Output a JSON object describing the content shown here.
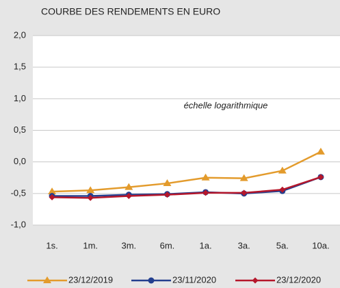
{
  "chart_data": {
    "type": "line",
    "title": "COURBE DES RENDEMENTS EN EURO",
    "annotation": "échelle logarithmique",
    "categories": [
      "1s.",
      "1m.",
      "3m.",
      "6m.",
      "1a.",
      "3a.",
      "5a.",
      "10a."
    ],
    "series": [
      {
        "name": "23/12/2019",
        "color": "#e39b2c",
        "marker": "triangle",
        "values": [
          -0.47,
          -0.45,
          -0.4,
          -0.34,
          -0.25,
          -0.26,
          -0.14,
          0.16
        ]
      },
      {
        "name": "23/11/2020",
        "color": "#233f8f",
        "marker": "circle",
        "values": [
          -0.54,
          -0.54,
          -0.52,
          -0.51,
          -0.48,
          -0.5,
          -0.46,
          -0.24
        ]
      },
      {
        "name": "23/12/2020",
        "color": "#b5172b",
        "marker": "diamond",
        "values": [
          -0.56,
          -0.57,
          -0.54,
          -0.52,
          -0.49,
          -0.49,
          -0.44,
          -0.24
        ]
      }
    ],
    "ylim": [
      -1,
      2
    ],
    "yticks": [
      {
        "value": -1,
        "label": "-1,0"
      },
      {
        "value": -0.5,
        "label": "-0,5"
      },
      {
        "value": 0,
        "label": "0,0"
      },
      {
        "value": 0.5,
        "label": "0,5"
      },
      {
        "value": 1,
        "label": "1,0"
      },
      {
        "value": 1.5,
        "label": "1,5"
      },
      {
        "value": 2,
        "label": "2,0"
      }
    ],
    "grid": true
  }
}
